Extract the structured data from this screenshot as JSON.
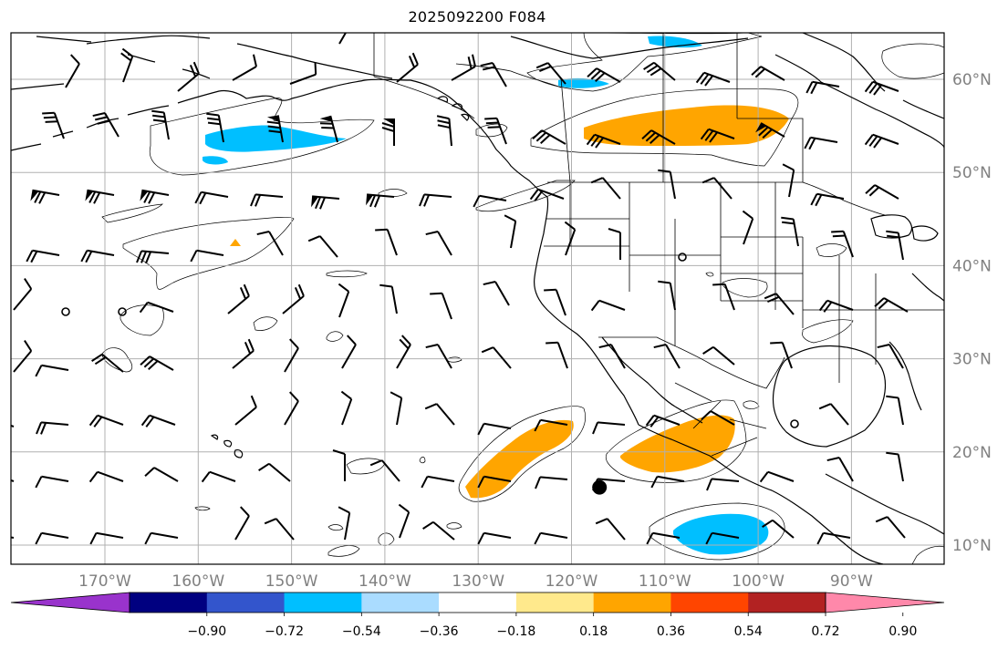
{
  "title": "2025092200 F084",
  "extent": {
    "lon_min": -180,
    "lon_max": -80,
    "lat_min": 8,
    "lat_max": 65
  },
  "lon_ticks": [
    {
      "lon": -170,
      "label": "170°W"
    },
    {
      "lon": -160,
      "label": "160°W"
    },
    {
      "lon": -150,
      "label": "150°W"
    },
    {
      "lon": -140,
      "label": "140°W"
    },
    {
      "lon": -130,
      "label": "130°W"
    },
    {
      "lon": -120,
      "label": "120°W"
    },
    {
      "lon": -110,
      "label": "110°W"
    },
    {
      "lon": -100,
      "label": "100°W"
    },
    {
      "lon": -90,
      "label": "90°W"
    }
  ],
  "lat_ticks": [
    {
      "lat": 60,
      "label": "60°N"
    },
    {
      "lat": 50,
      "label": "50°N"
    },
    {
      "lat": 40,
      "label": "40°N"
    },
    {
      "lat": 30,
      "label": "30°N"
    },
    {
      "lat": 20,
      "label": "20°N"
    },
    {
      "lat": 10,
      "label": "10°N"
    }
  ],
  "colorbar": {
    "colors": [
      "#9933cc",
      "#000080",
      "#3355cc",
      "#00bfff",
      "#aadcff",
      "#ffffff",
      "#ffe98c",
      "#ffa500",
      "#ff4500",
      "#b22222",
      "#ff88aa"
    ],
    "labels": [
      "−0.90",
      "−0.72",
      "−0.54",
      "−0.36",
      "−0.18",
      "0.18",
      "0.36",
      "0.54",
      "0.72",
      "0.90"
    ]
  },
  "colors": {
    "neg_light": "#aadcff",
    "neg_mid": "#00bfff",
    "pos_light": "#ffe98c",
    "pos_mid": "#ffa500",
    "grid": "#b0b0b0",
    "tick_text": "#808080"
  },
  "marker": {
    "lon": -117.0,
    "lat": 16.2,
    "symbol": "large black dot"
  }
}
